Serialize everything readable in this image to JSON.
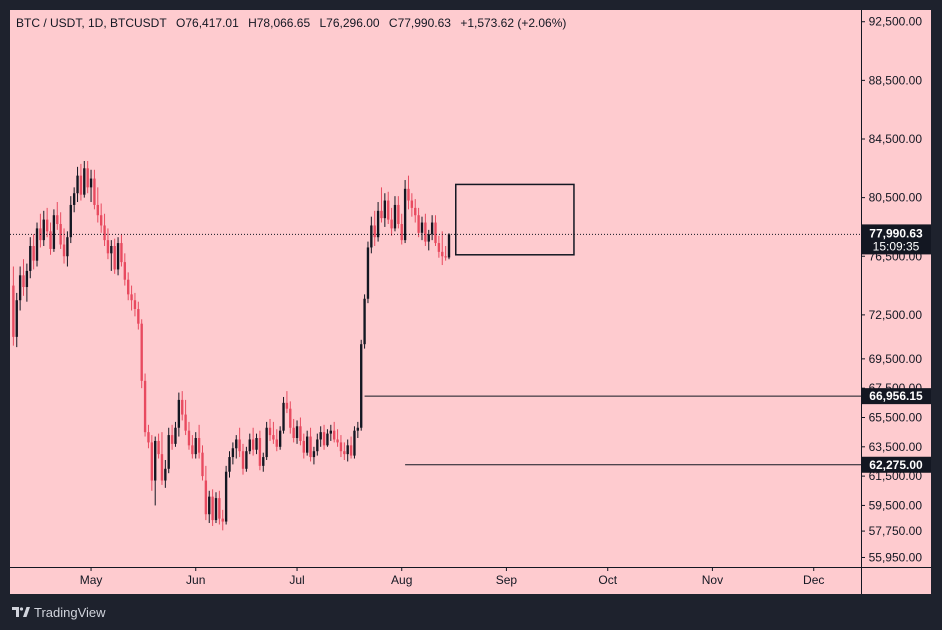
{
  "header": {
    "symbol": "BTC / USDT, 1D, BTCUSDT",
    "open": "O76,417.01",
    "high": "H78,066.65",
    "low": "L76,296.00",
    "close": "C77,990.63",
    "change": "+1,573.62 (+2.06%)"
  },
  "footer": {
    "brand": "TradingView"
  },
  "colors": {
    "plot_bg": "#fecbcf",
    "frame": "#1e222d",
    "up": "#131722",
    "down": "#e84a5f",
    "text": "#131722"
  },
  "chart_data": {
    "type": "candlestick",
    "title": "",
    "xlabel": "",
    "ylabel": "",
    "ylim": [
      55300,
      93300
    ],
    "y_ticks": [
      {
        "value": 92500,
        "label": "92,500.00"
      },
      {
        "value": 88500,
        "label": "88,500.00"
      },
      {
        "value": 84500,
        "label": "84,500.00"
      },
      {
        "value": 80500,
        "label": "80,500.00"
      },
      {
        "value": 76500,
        "label": "76,500.00"
      },
      {
        "value": 72500,
        "label": "72,500.00"
      },
      {
        "value": 69500,
        "label": "69,500.00"
      },
      {
        "value": 67500,
        "label": "67,500.00"
      },
      {
        "value": 65500,
        "label": "65,500.00"
      },
      {
        "value": 63500,
        "label": "63,500.00"
      },
      {
        "value": 61500,
        "label": "61,500.00"
      },
      {
        "value": 59500,
        "label": "59,500.00"
      },
      {
        "value": 57750,
        "label": "57,750.00"
      },
      {
        "value": 55950,
        "label": "55,950.00"
      }
    ],
    "x_ticks": [
      {
        "date": "2024-05-01",
        "label": "May"
      },
      {
        "date": "2024-06-01",
        "label": "Jun"
      },
      {
        "date": "2024-07-01",
        "label": "Jul"
      },
      {
        "date": "2024-08-01",
        "label": "Aug"
      },
      {
        "date": "2024-09-01",
        "label": "Sep"
      },
      {
        "date": "2024-10-01",
        "label": "Oct"
      },
      {
        "date": "2024-11-01",
        "label": "Nov"
      },
      {
        "date": "2024-12-01",
        "label": "Dec"
      }
    ],
    "x_range": [
      "2024-04-07",
      "2024-12-15"
    ],
    "last_price": {
      "value": 77990.63,
      "label": "77,990.63",
      "countdown": "15:09:35"
    },
    "levels": [
      {
        "value": 66956.15,
        "label": "66,956.15",
        "from": "2024-07-21"
      },
      {
        "value": 62275.0,
        "label": "62,275.00",
        "from": "2024-08-02"
      }
    ],
    "range_box": {
      "from": "2024-08-17",
      "to": "2024-09-21",
      "high": 81400,
      "low": 76600
    },
    "start_date": "2024-04-08",
    "candles": [
      [
        74500,
        75800,
        70400,
        71000
      ],
      [
        71000,
        74000,
        70300,
        73500
      ],
      [
        73500,
        75800,
        72800,
        75200
      ],
      [
        75200,
        76300,
        73800,
        74400
      ],
      [
        74400,
        76000,
        73400,
        75500
      ],
      [
        75500,
        77800,
        75000,
        77200
      ],
      [
        77200,
        78000,
        75600,
        76200
      ],
      [
        76200,
        78800,
        75800,
        78400
      ],
      [
        78400,
        79400,
        77100,
        77600
      ],
      [
        77600,
        79600,
        77200,
        79000
      ],
      [
        79000,
        79800,
        77800,
        78200
      ],
      [
        78200,
        78800,
        76600,
        77000
      ],
      [
        77000,
        79700,
        76800,
        79300
      ],
      [
        79300,
        80200,
        78300,
        78700
      ],
      [
        78700,
        79500,
        77000,
        77300
      ],
      [
        77300,
        78400,
        76000,
        76500
      ],
      [
        76500,
        78200,
        75800,
        77800
      ],
      [
        77800,
        80600,
        77400,
        80000
      ],
      [
        80000,
        81200,
        79500,
        80800
      ],
      [
        80800,
        82600,
        80200,
        82000
      ],
      [
        82000,
        82800,
        80300,
        80700
      ],
      [
        80700,
        83000,
        80500,
        82500
      ],
      [
        82500,
        83000,
        80800,
        81200
      ],
      [
        81200,
        82400,
        80200,
        81800
      ],
      [
        81800,
        82400,
        79700,
        80000
      ],
      [
        80000,
        81200,
        78800,
        79300
      ],
      [
        79300,
        80100,
        78100,
        78600
      ],
      [
        78600,
        79400,
        77200,
        77600
      ],
      [
        77600,
        78400,
        76300,
        76700
      ],
      [
        76700,
        77600,
        75500,
        77200
      ],
      [
        77200,
        77700,
        75300,
        75600
      ],
      [
        75600,
        77800,
        75200,
        77400
      ],
      [
        77400,
        78000,
        75800,
        76100
      ],
      [
        76100,
        76700,
        74500,
        74900
      ],
      [
        74900,
        75400,
        73500,
        73900
      ],
      [
        73900,
        74500,
        72800,
        73500
      ],
      [
        73500,
        74000,
        72400,
        72900
      ],
      [
        72900,
        73400,
        71500,
        71900
      ],
      [
        71900,
        72200,
        67500,
        68000
      ],
      [
        68000,
        68500,
        64200,
        64500
      ],
      [
        64500,
        65000,
        63400,
        63800
      ],
      [
        63800,
        64300,
        60500,
        61200
      ],
      [
        61200,
        64200,
        59500,
        63900
      ],
      [
        63900,
        64400,
        62700,
        63000
      ],
      [
        63000,
        64500,
        60900,
        61200
      ],
      [
        61200,
        62600,
        60700,
        62000
      ],
      [
        62000,
        64800,
        61700,
        64300
      ],
      [
        64300,
        65000,
        63300,
        63700
      ],
      [
        63700,
        65200,
        63500,
        64800
      ],
      [
        64800,
        67200,
        64200,
        66700
      ],
      [
        66700,
        67300,
        65300,
        65700
      ],
      [
        65700,
        66700,
        64300,
        64600
      ],
      [
        64600,
        65200,
        63300,
        63600
      ],
      [
        63600,
        64300,
        62700,
        63000
      ],
      [
        63000,
        64500,
        62700,
        64100
      ],
      [
        64100,
        65000,
        62700,
        63100
      ],
      [
        63100,
        63600,
        61200,
        61500
      ],
      [
        61200,
        62200,
        58500,
        58900
      ],
      [
        58900,
        60500,
        58300,
        60100
      ],
      [
        60100,
        60600,
        58100,
        58500
      ],
      [
        58500,
        60400,
        58300,
        60000
      ],
      [
        60000,
        60500,
        58200,
        58600
      ],
      [
        58600,
        59200,
        57800,
        58400
      ],
      [
        58400,
        62200,
        58200,
        61800
      ],
      [
        61800,
        63200,
        61400,
        62800
      ],
      [
        62800,
        63800,
        62300,
        63400
      ],
      [
        63400,
        64300,
        62700,
        64000
      ],
      [
        64000,
        64800,
        62800,
        63200
      ],
      [
        63200,
        63700,
        61600,
        62000
      ],
      [
        62000,
        63500,
        61800,
        63200
      ],
      [
        63200,
        64400,
        63000,
        64000
      ],
      [
        64000,
        64800,
        62900,
        63300
      ],
      [
        63300,
        64400,
        63000,
        64100
      ],
      [
        64100,
        64600,
        61900,
        62200
      ],
      [
        62200,
        63100,
        61800,
        62800
      ],
      [
        62800,
        65200,
        62600,
        64800
      ],
      [
        64800,
        65400,
        63900,
        64300
      ],
      [
        64300,
        65200,
        63700,
        64000
      ],
      [
        64000,
        64700,
        63200,
        63500
      ],
      [
        63500,
        64900,
        63300,
        64600
      ],
      [
        64600,
        66900,
        64400,
        66500
      ],
      [
        66500,
        67300,
        65800,
        66100
      ],
      [
        66100,
        66600,
        64400,
        64800
      ],
      [
        64800,
        65400,
        63800,
        64100
      ],
      [
        64100,
        65300,
        63700,
        64900
      ],
      [
        64900,
        65500,
        63600,
        63900
      ],
      [
        63900,
        64400,
        62700,
        63100
      ],
      [
        63100,
        64600,
        62900,
        64200
      ],
      [
        64200,
        64800,
        62500,
        62800
      ],
      [
        62800,
        63500,
        62300,
        63200
      ],
      [
        63200,
        64400,
        62900,
        64000
      ],
      [
        64000,
        64900,
        63500,
        64500
      ],
      [
        64500,
        65000,
        63300,
        63600
      ],
      [
        63600,
        64700,
        63500,
        64400
      ],
      [
        64400,
        65000,
        63900,
        64600
      ],
      [
        64600,
        65200,
        63800,
        64000
      ],
      [
        64000,
        64700,
        63500,
        63800
      ],
      [
        63800,
        64300,
        62800,
        63200
      ],
      [
        63200,
        63800,
        62600,
        63000
      ],
      [
        63000,
        64000,
        62500,
        63600
      ],
      [
        63600,
        64200,
        62700,
        62900
      ],
      [
        62900,
        64900,
        62700,
        64600
      ],
      [
        64600,
        65200,
        64100,
        64800
      ],
      [
        64800,
        70800,
        64600,
        70500
      ],
      [
        70500,
        73900,
        70200,
        73600
      ],
      [
        73600,
        77500,
        73300,
        77100
      ],
      [
        77100,
        79200,
        76700,
        78600
      ],
      [
        78600,
        79600,
        77200,
        77800
      ],
      [
        77800,
        80200,
        77500,
        79600
      ],
      [
        79600,
        81200,
        78800,
        79100
      ],
      [
        79100,
        80800,
        78500,
        80300
      ],
      [
        80300,
        80900,
        78700,
        79000
      ],
      [
        79000,
        79800,
        77900,
        78400
      ],
      [
        78400,
        80600,
        78200,
        80000
      ],
      [
        80000,
        80600,
        78400,
        78700
      ],
      [
        78700,
        79400,
        77300,
        77600
      ],
      [
        77600,
        81700,
        77400,
        81100
      ],
      [
        81100,
        82000,
        79700,
        80300
      ],
      [
        80300,
        80800,
        79200,
        79800
      ],
      [
        79800,
        80400,
        78800,
        79300
      ],
      [
        79300,
        79800,
        77800,
        78100
      ],
      [
        78100,
        79200,
        77600,
        78800
      ],
      [
        78800,
        79400,
        77200,
        77500
      ],
      [
        77500,
        78300,
        76900,
        78000
      ],
      [
        78000,
        79300,
        77600,
        78800
      ],
      [
        78800,
        79300,
        77200,
        77400
      ],
      [
        77400,
        77900,
        76400,
        76800
      ],
      [
        76800,
        78200,
        75900,
        76500
      ],
      [
        76500,
        77200,
        76200,
        76417.01
      ],
      [
        76417.01,
        78066.65,
        76296.0,
        77990.63
      ]
    ]
  }
}
